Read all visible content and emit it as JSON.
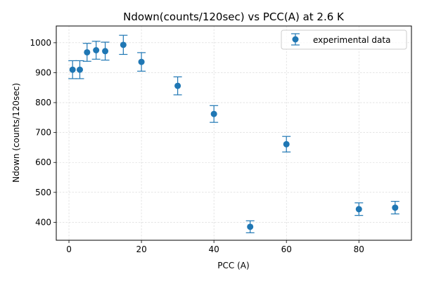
{
  "chart_data": {
    "type": "scatter",
    "title": "Ndown(counts/120sec) vs PCC(A) at 2.6 K",
    "xlabel": "PCC (A)",
    "ylabel": "Ndown (counts/120sec)",
    "xlim": [
      -3.5,
      94.5
    ],
    "ylim": [
      340,
      1056
    ],
    "xticks": [
      0,
      20,
      40,
      60,
      80
    ],
    "yticks": [
      400,
      500,
      600,
      700,
      800,
      900,
      1000
    ],
    "grid": true,
    "legend": "top-right",
    "error_bars": true,
    "series": [
      {
        "name": "experimental data",
        "color": "#1f77b4",
        "marker": "circle",
        "points": [
          {
            "x": 1,
            "y": 910,
            "err": 30
          },
          {
            "x": 3,
            "y": 910,
            "err": 30
          },
          {
            "x": 5,
            "y": 968,
            "err": 30
          },
          {
            "x": 7.5,
            "y": 975,
            "err": 30
          },
          {
            "x": 10,
            "y": 972,
            "err": 30
          },
          {
            "x": 15,
            "y": 993,
            "err": 32
          },
          {
            "x": 20,
            "y": 936,
            "err": 31
          },
          {
            "x": 30,
            "y": 856,
            "err": 30
          },
          {
            "x": 40,
            "y": 762,
            "err": 28
          },
          {
            "x": 50,
            "y": 385,
            "err": 20
          },
          {
            "x": 60,
            "y": 661,
            "err": 26
          },
          {
            "x": 80,
            "y": 444,
            "err": 21
          },
          {
            "x": 90,
            "y": 449,
            "err": 21
          }
        ]
      }
    ]
  }
}
